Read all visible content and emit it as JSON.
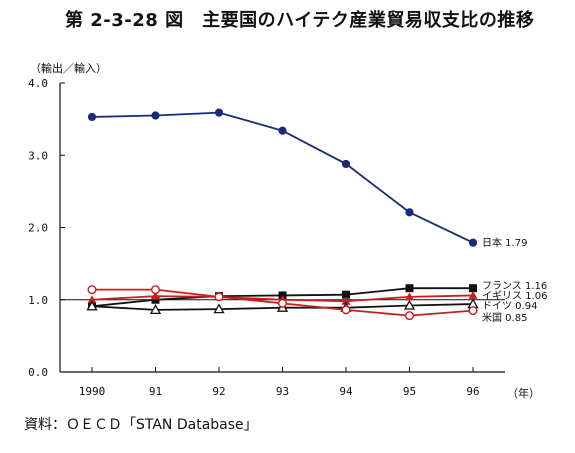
{
  "title": "第 2-3-28 図　主要国のハイテク産業貿易収支比の推移",
  "source": "資料：ＯＥＣＤ「STAN Database」",
  "chart_data": {
    "type": "line",
    "ylabel": "（輸出／輸入）",
    "xunit": "（年）",
    "ylim": [
      0,
      4
    ],
    "yticks": [
      "0.0",
      "1.0",
      "2.0",
      "3.0",
      "4.0"
    ],
    "categories": [
      "1990",
      "91",
      "92",
      "93",
      "94",
      "95",
      "96"
    ],
    "reference_line": 1.0,
    "series": [
      {
        "name": "日本",
        "end_label": "日本 1.79",
        "color": "#1a2a7a",
        "marker": "filled-circle",
        "values": [
          3.53,
          3.55,
          3.59,
          3.34,
          2.88,
          2.21,
          1.79
        ]
      },
      {
        "name": "フランス",
        "end_label": "フランス 1.16",
        "color": "#111111",
        "marker": "filled-square",
        "values": [
          0.91,
          1.0,
          1.05,
          1.06,
          1.07,
          1.16,
          1.16
        ]
      },
      {
        "name": "イギリス",
        "end_label": "イギリス 1.06",
        "color": "#c81e1e",
        "marker": "filled-triangle",
        "values": [
          1.0,
          1.05,
          1.04,
          1.0,
          0.98,
          1.04,
          1.06
        ]
      },
      {
        "name": "ドイツ",
        "end_label": "ドイツ 0.94",
        "color": "#111111",
        "marker": "open-triangle",
        "values": [
          0.91,
          0.86,
          0.87,
          0.89,
          0.89,
          0.92,
          0.94
        ]
      },
      {
        "name": "米国",
        "end_label": "米国 0.85",
        "color": "#c81e1e",
        "marker": "open-circle",
        "values": [
          1.14,
          1.14,
          1.04,
          0.95,
          0.86,
          0.78,
          0.85
        ]
      }
    ]
  }
}
